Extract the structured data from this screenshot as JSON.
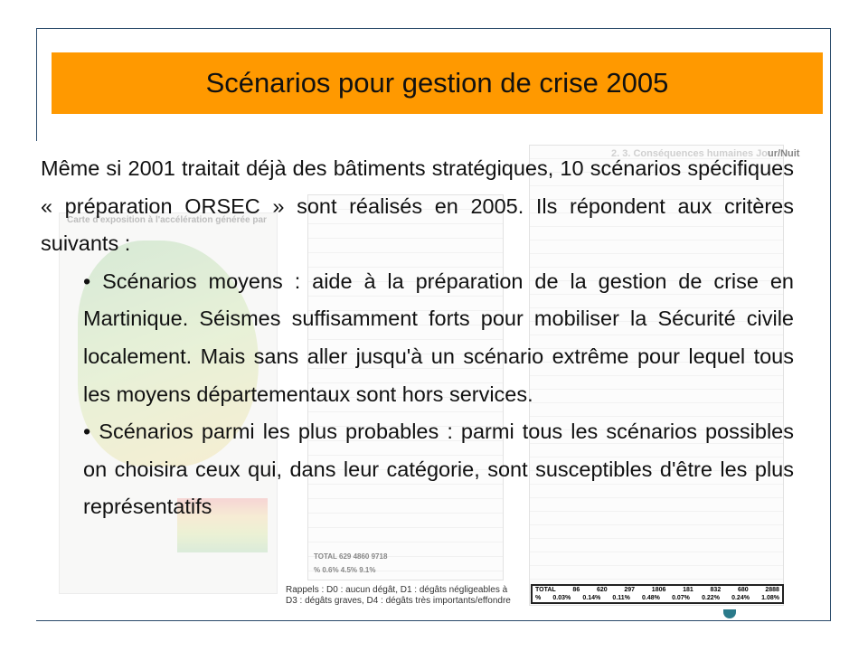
{
  "slide": {
    "title": "Scénarios pour gestion de crise 2005",
    "intro": "Même si 2001 traitait déjà des bâtiments stratégiques, 10 scénarios spécifiques « préparation ORSEC » sont réalisés en 2005. Ils répondent aux critères suivants :",
    "bullets": [
      "• Scénarios moyens : aide à la préparation de la gestion de crise en Martinique. Séismes suffisamment forts pour mobiliser la Sécurité civile localement. Mais sans aller jusqu'à un scénario extrême pour lequel tous les moyens départementaux sont hors services.",
      "• Scénarios parmi les plus probables : parmi tous les scénarios possibles on choisira ceux qui, dans leur catégorie, sont susceptibles d'être les plus représentatifs"
    ],
    "accent_color": "#ff9900"
  },
  "background": {
    "map_caption": "Carte d'exposition à l'accélération générée par",
    "table_heading_faded": "2.      3. Conséquences humaines Jo",
    "table_heading_bold": "ur/Nuit",
    "rappels_line1": "Rappels : D0 : aucun dégât, D1 : dégâts négligeables à",
    "rappels_line2": "D3 : dégâts graves, D4 : dégâts très importants/effondre",
    "table1_total": "TOTAL   629   4860   9718",
    "table1_percent": "%   0.6%   4.5%   9.1%",
    "table2_total": [
      "TOTAL",
      "86",
      "620",
      "297",
      "1806",
      "181",
      "832",
      "680",
      "2888"
    ],
    "table2_percent": [
      "%",
      "0.03%",
      "0.14%",
      "0.11%",
      "0.48%",
      "0.07%",
      "0.22%",
      "0.24%",
      "1.08%"
    ]
  }
}
